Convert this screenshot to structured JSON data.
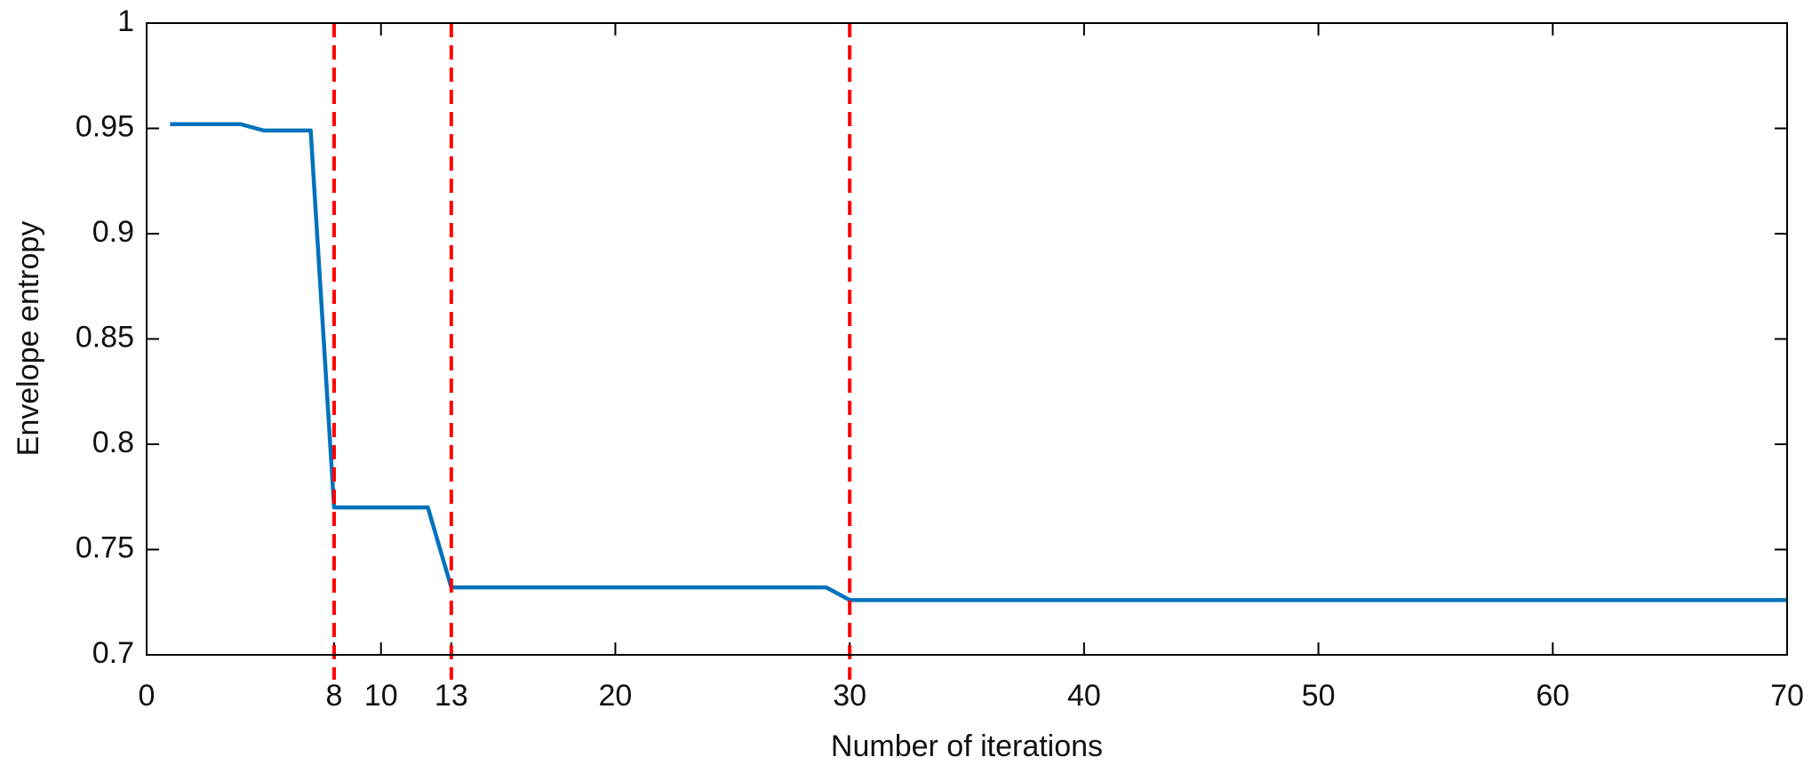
{
  "chart_data": {
    "type": "line",
    "xlabel": "Number of iterations",
    "ylabel": "Envelope entropy",
    "x": [
      1,
      4,
      5,
      7,
      8,
      12,
      13,
      29,
      30,
      70
    ],
    "series": [
      {
        "color": "#0072bd",
        "values": [
          0.952,
          0.952,
          0.949,
          0.949,
          0.77,
          0.77,
          0.732,
          0.732,
          0.726,
          0.726
        ]
      }
    ],
    "vlines": [
      8,
      13,
      30
    ],
    "vline_color": "#ff0000",
    "xlim": [
      0,
      70
    ],
    "xticks": [
      0,
      8,
      10,
      13,
      20,
      30,
      40,
      50,
      60,
      70
    ],
    "ylim": [
      0.7,
      1
    ],
    "yticks": [
      0.7,
      0.75,
      0.8,
      0.85,
      0.9,
      0.95,
      1
    ],
    "grid": false
  }
}
